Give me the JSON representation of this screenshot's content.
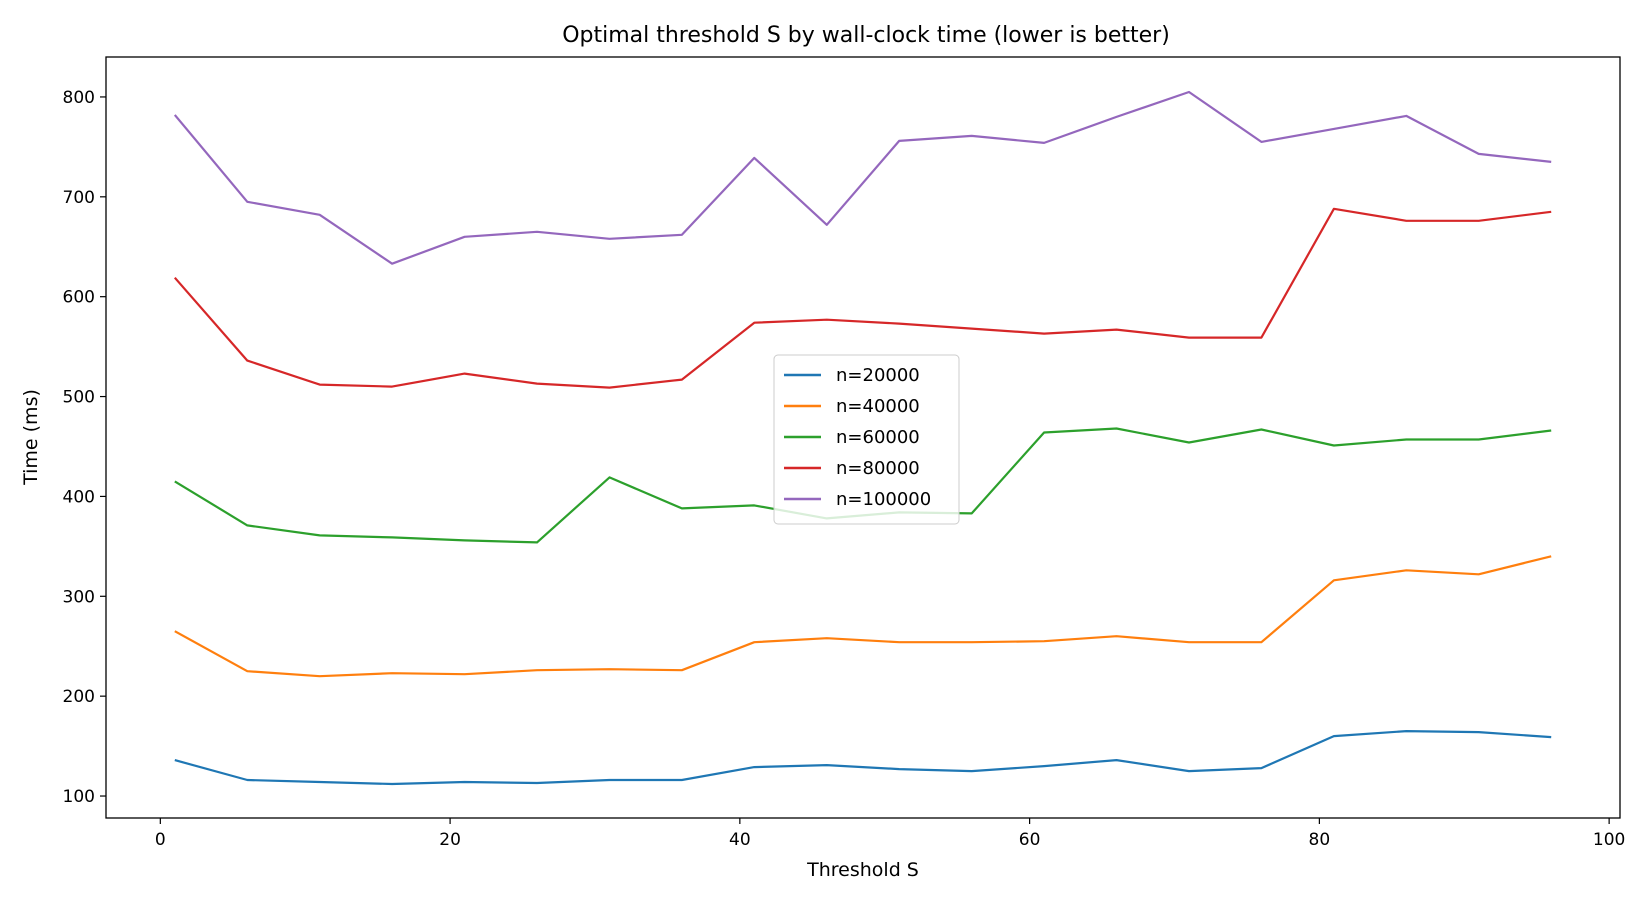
{
  "chart_data": {
    "type": "line",
    "title": "Optimal threshold S by wall-clock time (lower is better)",
    "xlabel": "Threshold S",
    "ylabel": "Time (ms)",
    "xlim": [
      -3.75,
      100.75
    ],
    "ylim": [
      78,
      840
    ],
    "xticks": [
      0,
      20,
      40,
      60,
      80,
      100
    ],
    "yticks": [
      100,
      200,
      300,
      400,
      500,
      600,
      700,
      800
    ],
    "grid": false,
    "legend_position": "center",
    "x": [
      1,
      6,
      11,
      16,
      21,
      26,
      31,
      36,
      41,
      46,
      51,
      56,
      61,
      66,
      71,
      76,
      81,
      86,
      91,
      96
    ],
    "series": [
      {
        "name": "n=20000",
        "color": "#1f77b4",
        "values": [
          136,
          116,
          114,
          112,
          114,
          113,
          116,
          116,
          129,
          131,
          127,
          125,
          130,
          136,
          125,
          128,
          160,
          165,
          164,
          159
        ]
      },
      {
        "name": "n=40000",
        "color": "#ff7f0e",
        "values": [
          265,
          225,
          220,
          223,
          222,
          226,
          227,
          226,
          254,
          258,
          254,
          254,
          255,
          260,
          254,
          254,
          316,
          326,
          322,
          340
        ]
      },
      {
        "name": "n=60000",
        "color": "#2ca02c",
        "values": [
          415,
          371,
          361,
          359,
          356,
          354,
          419,
          388,
          391,
          378,
          384,
          383,
          464,
          468,
          454,
          467,
          451,
          457,
          457,
          466
        ]
      },
      {
        "name": "n=80000",
        "color": "#d62728",
        "values": [
          619,
          536,
          512,
          510,
          523,
          513,
          509,
          517,
          574,
          577,
          573,
          568,
          563,
          567,
          559,
          559,
          688,
          676,
          676,
          685
        ]
      },
      {
        "name": "n=100000",
        "color": "#9467bd",
        "values": [
          782,
          695,
          682,
          633,
          660,
          665,
          658,
          662,
          739,
          672,
          756,
          761,
          754,
          780,
          805,
          755,
          768,
          781,
          743,
          735
        ]
      }
    ]
  }
}
